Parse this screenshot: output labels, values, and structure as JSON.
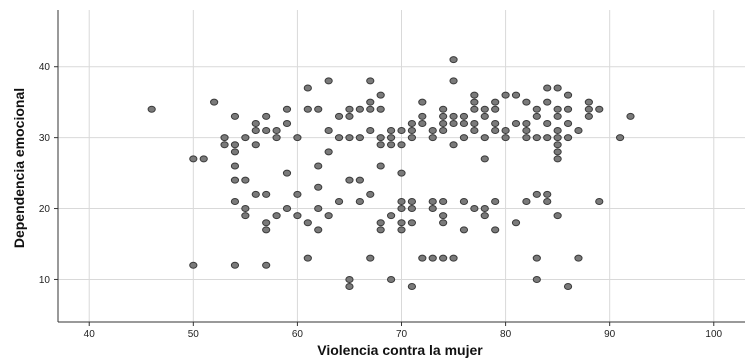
{
  "chart_data": {
    "type": "scatter",
    "title": "",
    "xlabel": "Violencia contra la mujer",
    "ylabel": "Dependencia emocional",
    "xlim": [
      37,
      103
    ],
    "ylim": [
      4,
      48
    ],
    "xticks": [
      40,
      50,
      60,
      70,
      80,
      90,
      100
    ],
    "yticks": [
      10,
      20,
      30,
      40
    ],
    "grid": true,
    "colors": {
      "marker_fill": "#7a7a7a",
      "marker_edge": "#3a3a3a",
      "grid": "#d9d9d9",
      "axis": "#333333"
    },
    "points": [
      [
        46,
        34
      ],
      [
        50,
        27
      ],
      [
        50,
        12
      ],
      [
        51,
        27
      ],
      [
        52,
        35
      ],
      [
        53,
        30
      ],
      [
        53,
        29
      ],
      [
        54,
        33
      ],
      [
        54,
        29
      ],
      [
        54,
        28
      ],
      [
        54,
        26
      ],
      [
        54,
        24
      ],
      [
        54,
        21
      ],
      [
        54,
        12
      ],
      [
        55,
        30
      ],
      [
        55,
        24
      ],
      [
        55,
        20
      ],
      [
        55,
        19
      ],
      [
        56,
        32
      ],
      [
        56,
        31
      ],
      [
        56,
        29
      ],
      [
        56,
        22
      ],
      [
        57,
        33
      ],
      [
        57,
        31
      ],
      [
        57,
        22
      ],
      [
        57,
        18
      ],
      [
        57,
        17
      ],
      [
        57,
        12
      ],
      [
        58,
        31
      ],
      [
        58,
        30
      ],
      [
        58,
        19
      ],
      [
        59,
        34
      ],
      [
        59,
        32
      ],
      [
        59,
        25
      ],
      [
        59,
        20
      ],
      [
        60,
        30
      ],
      [
        60,
        22
      ],
      [
        60,
        19
      ],
      [
        61,
        37
      ],
      [
        61,
        34
      ],
      [
        61,
        18
      ],
      [
        61,
        13
      ],
      [
        62,
        34
      ],
      [
        62,
        26
      ],
      [
        62,
        23
      ],
      [
        62,
        20
      ],
      [
        62,
        17
      ],
      [
        63,
        38
      ],
      [
        63,
        31
      ],
      [
        63,
        28
      ],
      [
        63,
        19
      ],
      [
        64,
        33
      ],
      [
        64,
        30
      ],
      [
        64,
        21
      ],
      [
        65,
        34
      ],
      [
        65,
        33
      ],
      [
        65,
        30
      ],
      [
        65,
        24
      ],
      [
        65,
        10
      ],
      [
        65,
        9
      ],
      [
        66,
        34
      ],
      [
        66,
        30
      ],
      [
        66,
        24
      ],
      [
        66,
        21
      ],
      [
        67,
        38
      ],
      [
        67,
        35
      ],
      [
        67,
        34
      ],
      [
        67,
        31
      ],
      [
        67,
        22
      ],
      [
        67,
        13
      ],
      [
        68,
        36
      ],
      [
        68,
        34
      ],
      [
        68,
        30
      ],
      [
        68,
        29
      ],
      [
        68,
        26
      ],
      [
        68,
        18
      ],
      [
        68,
        17
      ],
      [
        69,
        31
      ],
      [
        69,
        30
      ],
      [
        69,
        29
      ],
      [
        69,
        19
      ],
      [
        69,
        10
      ],
      [
        70,
        31
      ],
      [
        70,
        29
      ],
      [
        70,
        25
      ],
      [
        70,
        21
      ],
      [
        70,
        20
      ],
      [
        70,
        18
      ],
      [
        70,
        17
      ],
      [
        71,
        32
      ],
      [
        71,
        31
      ],
      [
        71,
        30
      ],
      [
        71,
        21
      ],
      [
        71,
        20
      ],
      [
        71,
        18
      ],
      [
        71,
        9
      ],
      [
        72,
        35
      ],
      [
        72,
        33
      ],
      [
        72,
        32
      ],
      [
        72,
        13
      ],
      [
        73,
        31
      ],
      [
        73,
        30
      ],
      [
        73,
        21
      ],
      [
        73,
        20
      ],
      [
        73,
        13
      ],
      [
        74,
        34
      ],
      [
        74,
        33
      ],
      [
        74,
        32
      ],
      [
        74,
        31
      ],
      [
        74,
        21
      ],
      [
        74,
        19
      ],
      [
        74,
        18
      ],
      [
        74,
        13
      ],
      [
        75,
        41
      ],
      [
        75,
        38
      ],
      [
        75,
        33
      ],
      [
        75,
        32
      ],
      [
        75,
        29
      ],
      [
        75,
        13
      ],
      [
        76,
        33
      ],
      [
        76,
        32
      ],
      [
        76,
        30
      ],
      [
        76,
        21
      ],
      [
        76,
        17
      ],
      [
        77,
        36
      ],
      [
        77,
        35
      ],
      [
        77,
        34
      ],
      [
        77,
        32
      ],
      [
        77,
        31
      ],
      [
        77,
        20
      ],
      [
        78,
        34
      ],
      [
        78,
        33
      ],
      [
        78,
        30
      ],
      [
        78,
        27
      ],
      [
        78,
        20
      ],
      [
        78,
        19
      ],
      [
        79,
        35
      ],
      [
        79,
        34
      ],
      [
        79,
        32
      ],
      [
        79,
        31
      ],
      [
        79,
        21
      ],
      [
        79,
        17
      ],
      [
        80,
        36
      ],
      [
        80,
        31
      ],
      [
        80,
        30
      ],
      [
        81,
        36
      ],
      [
        81,
        32
      ],
      [
        81,
        18
      ],
      [
        82,
        35
      ],
      [
        82,
        32
      ],
      [
        82,
        31
      ],
      [
        82,
        30
      ],
      [
        82,
        21
      ],
      [
        83,
        34
      ],
      [
        83,
        33
      ],
      [
        83,
        30
      ],
      [
        83,
        22
      ],
      [
        83,
        13
      ],
      [
        83,
        10
      ],
      [
        84,
        37
      ],
      [
        84,
        35
      ],
      [
        84,
        32
      ],
      [
        84,
        30
      ],
      [
        84,
        22
      ],
      [
        84,
        21
      ],
      [
        85,
        37
      ],
      [
        85,
        34
      ],
      [
        85,
        33
      ],
      [
        85,
        31
      ],
      [
        85,
        30
      ],
      [
        85,
        29
      ],
      [
        85,
        28
      ],
      [
        85,
        27
      ],
      [
        85,
        19
      ],
      [
        86,
        36
      ],
      [
        86,
        34
      ],
      [
        86,
        32
      ],
      [
        86,
        30
      ],
      [
        86,
        9
      ],
      [
        87,
        31
      ],
      [
        87,
        13
      ],
      [
        88,
        35
      ],
      [
        88,
        34
      ],
      [
        88,
        33
      ],
      [
        89,
        34
      ],
      [
        89,
        21
      ],
      [
        91,
        30
      ],
      [
        92,
        33
      ]
    ]
  }
}
